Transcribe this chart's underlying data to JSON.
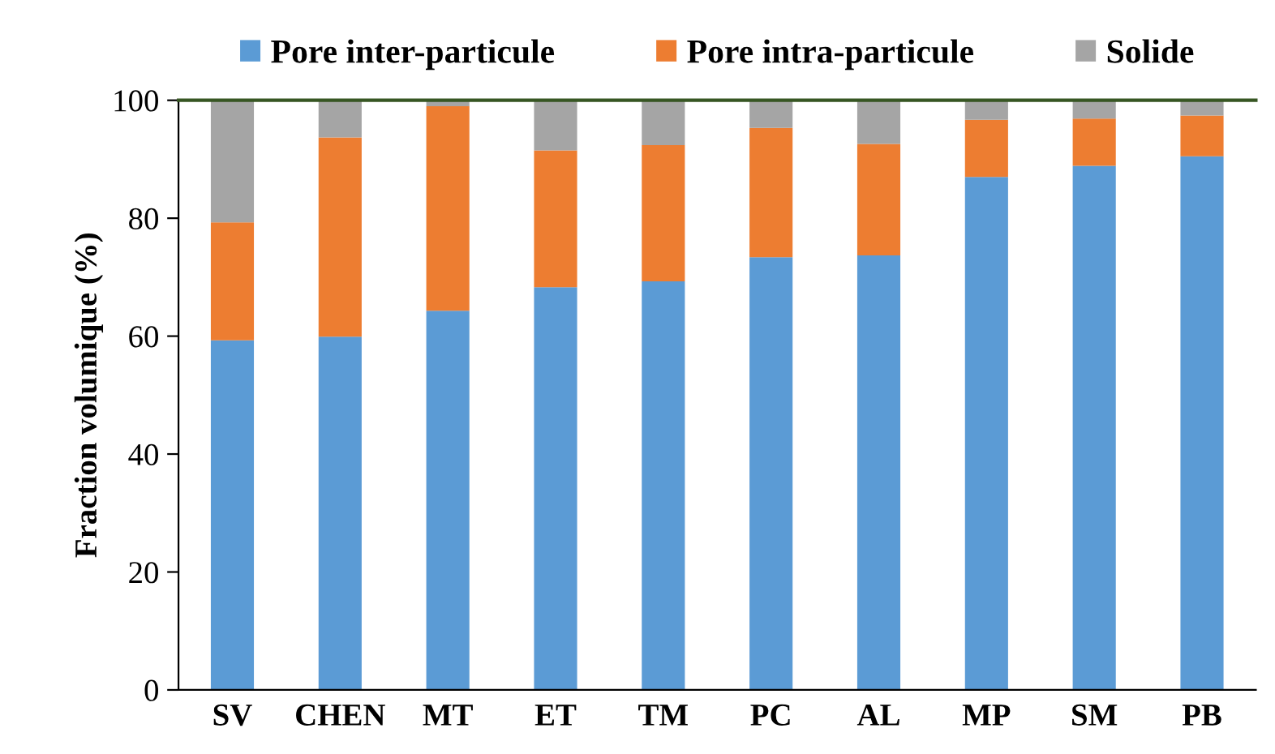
{
  "chart_data": {
    "type": "bar",
    "stacked": true,
    "ylabel": "Fraction volumique (%)",
    "categories": [
      "SV",
      "CHEN",
      "MT",
      "ET",
      "TM",
      "PC",
      "AL",
      "MP",
      "SM",
      "PB"
    ],
    "series": [
      {
        "name": "Pore inter-particule",
        "color": "#5b9bd5",
        "values": [
          59.3,
          59.9,
          64.3,
          68.3,
          69.3,
          73.4,
          73.7,
          87.0,
          88.9,
          90.5
        ]
      },
      {
        "name": "Pore intra-particule",
        "color": "#ed7d31",
        "values": [
          20.0,
          33.8,
          34.7,
          23.2,
          23.1,
          21.9,
          18.9,
          9.7,
          8.0,
          6.9
        ]
      },
      {
        "name": "Solide",
        "color": "#a5a5a5",
        "values": [
          20.7,
          6.3,
          1.0,
          8.5,
          7.6,
          4.7,
          7.4,
          3.3,
          3.1,
          2.6
        ]
      }
    ],
    "ylim": [
      0,
      100
    ],
    "yticks": [
      0,
      20,
      40,
      60,
      80,
      100
    ],
    "grid": false,
    "legend": "top"
  }
}
